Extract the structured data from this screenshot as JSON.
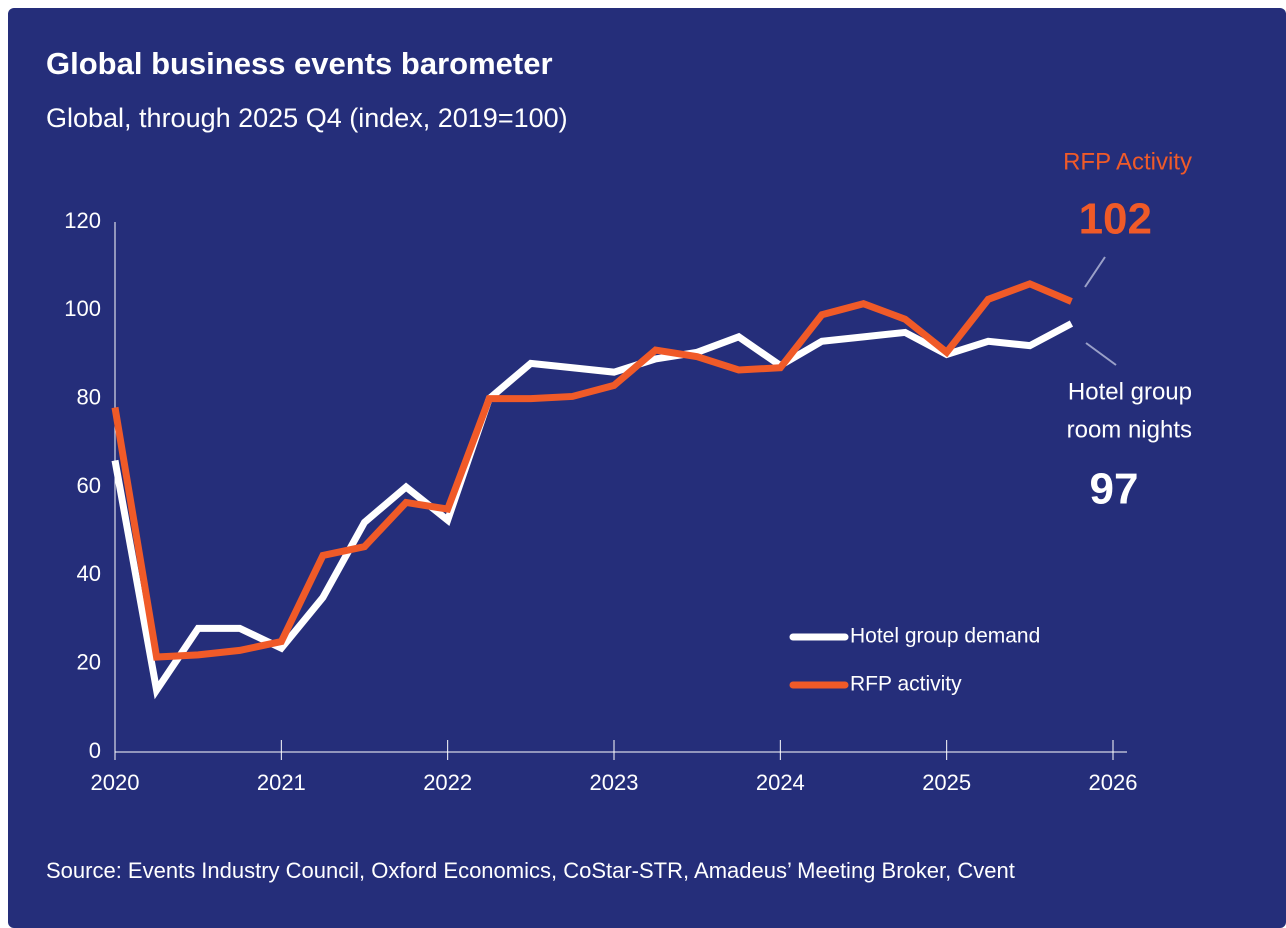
{
  "chart_data": {
    "type": "line",
    "title": "Global business events barometer",
    "subtitle": "Global, through 2025 Q4 (index, 2019=100)",
    "source": "Source: Events Industry Council, Oxford Economics, CoStar-STR, Amadeus’ Meeting Broker, Cvent",
    "x": [
      2020,
      2020.25,
      2020.5,
      2020.75,
      2021,
      2021.25,
      2021.5,
      2021.75,
      2022,
      2022.25,
      2022.5,
      2022.75,
      2023,
      2023.25,
      2023.5,
      2023.75,
      2024,
      2024.25,
      2024.5,
      2024.75,
      2025,
      2025.25,
      2025.5,
      2025.75
    ],
    "series": [
      {
        "name": "Hotel group demand",
        "color": "#ffffff",
        "values": [
          66,
          14,
          28,
          28,
          23.5,
          35,
          52,
          60,
          52.5,
          80,
          88,
          87,
          86,
          89,
          90.5,
          94,
          87.5,
          93,
          94,
          95,
          90,
          93,
          92,
          97
        ]
      },
      {
        "name": "RFP activity",
        "color": "#f05a28",
        "values": [
          78,
          21.5,
          22,
          23,
          25,
          44.5,
          46.5,
          56.5,
          55,
          80,
          80,
          80.5,
          83,
          91,
          89.5,
          86.5,
          87,
          99,
          101.5,
          98,
          90.5,
          102.5,
          106,
          102
        ]
      }
    ],
    "annotations": [
      {
        "lines": [
          "RFP Activity"
        ],
        "value": "102",
        "color": "#f05a28"
      },
      {
        "lines": [
          "Hotel group",
          "room nights"
        ],
        "value": "97",
        "color": "#ffffff"
      }
    ],
    "xlim": [
      2020,
      2026
    ],
    "xticks": [
      2020,
      2021,
      2022,
      2023,
      2024,
      2025,
      2026
    ],
    "ylim": [
      0,
      120
    ],
    "yticks": [
      0,
      20,
      40,
      60,
      80,
      100,
      120
    ],
    "grid": false
  }
}
